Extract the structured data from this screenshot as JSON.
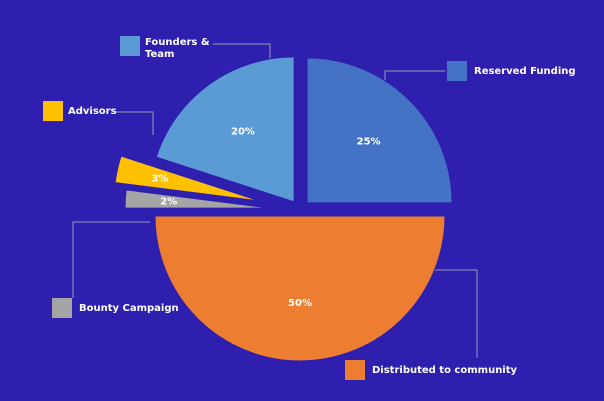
{
  "chart_data": {
    "type": "pie",
    "categories": [
      "Reserved Funding",
      "Distributed to community",
      "Bounty Campaign",
      "Advisors",
      "Founders & Team"
    ],
    "values": [
      25,
      50,
      2,
      3,
      20
    ],
    "value_labels": [
      "25%",
      "50%",
      "2%",
      "3%",
      "20%"
    ],
    "colors": [
      "#4472c4",
      "#ed7d31",
      "#a5a5a5",
      "#ffc000",
      "#5b9bd5"
    ]
  }
}
